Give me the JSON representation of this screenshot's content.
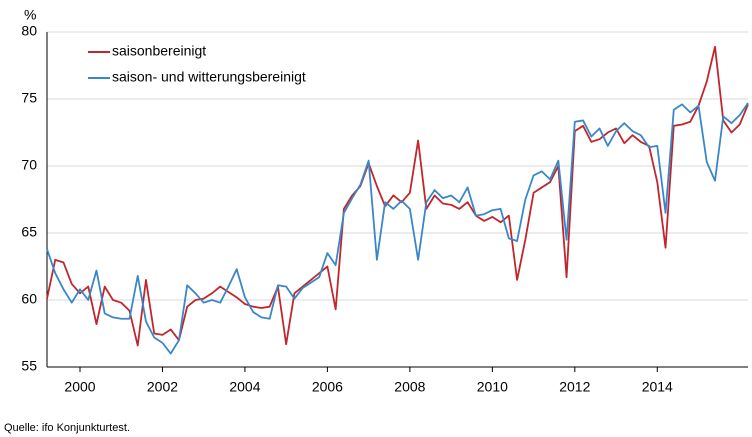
{
  "chart_data": {
    "type": "line",
    "y_unit": "%",
    "source": "Quelle: ifo Konjunkturtest.",
    "x": [
      1999.2,
      1999.4,
      1999.6,
      1999.8,
      2000.0,
      2000.2,
      2000.4,
      2000.6,
      2000.8,
      2001.0,
      2001.2,
      2001.4,
      2001.6,
      2001.8,
      2002.0,
      2002.2,
      2002.4,
      2002.6,
      2002.8,
      2003.0,
      2003.2,
      2003.4,
      2003.6,
      2003.8,
      2004.0,
      2004.2,
      2004.4,
      2004.6,
      2004.8,
      2005.0,
      2005.2,
      2005.4,
      2005.6,
      2005.8,
      2006.0,
      2006.2,
      2006.4,
      2006.6,
      2006.8,
      2007.0,
      2007.2,
      2007.4,
      2007.6,
      2007.8,
      2008.0,
      2008.2,
      2008.4,
      2008.6,
      2008.8,
      2009.0,
      2009.2,
      2009.4,
      2009.6,
      2009.8,
      2010.0,
      2010.2,
      2010.4,
      2010.6,
      2010.8,
      2011.0,
      2011.2,
      2011.4,
      2011.6,
      2011.8,
      2012.0,
      2012.2,
      2012.4,
      2012.6,
      2012.8,
      2013.0,
      2013.2,
      2013.4,
      2013.6,
      2013.8,
      2014.0,
      2014.2,
      2014.4,
      2014.6,
      2014.8,
      2015.0,
      2015.2,
      2015.4,
      2015.6,
      2015.8,
      2016.0,
      2016.2
    ],
    "series": [
      {
        "name": "saisonbereinigt",
        "color": "#c0272d",
        "values": [
          60.1,
          63,
          62.8,
          61.2,
          60.5,
          61,
          58.2,
          61,
          60,
          59.8,
          59.2,
          56.6,
          61.5,
          57.5,
          57.4,
          57.8,
          57,
          59.5,
          60,
          60.1,
          60.5,
          61,
          60.6,
          60.2,
          59.7,
          59.5,
          59.4,
          59.5,
          61,
          56.7,
          60.5,
          61,
          61.5,
          62,
          62.5,
          59.3,
          66.8,
          67.8,
          68.5,
          70.2,
          68.5,
          67,
          67.8,
          67.3,
          68,
          71.9,
          66.8,
          67.8,
          67.2,
          67.1,
          66.8,
          67.3,
          66.3,
          65.9,
          66.2,
          65.8,
          66.3,
          61.5,
          64.5,
          68,
          68.4,
          68.8,
          70,
          61.7,
          72.6,
          73,
          71.8,
          72,
          72.5,
          72.8,
          71.7,
          72.3,
          71.8,
          71.5,
          68.8,
          63.9,
          73,
          73.1,
          73.3,
          74.5,
          76.3,
          78.9,
          73.4,
          72.5,
          73.1,
          74.6
        ]
      },
      {
        "name": "saison- und witterungsbereinigt",
        "color": "#3a87c8",
        "values": [
          63.8,
          62,
          60.8,
          59.8,
          60.8,
          60,
          62.2,
          59,
          58.7,
          58.6,
          58.6,
          61.8,
          58.4,
          57.2,
          56.8,
          56,
          57,
          61.1,
          60.5,
          59.8,
          60,
          59.8,
          61,
          62.3,
          60.2,
          59.1,
          58.7,
          58.6,
          61.1,
          61,
          60.1,
          60.9,
          61.3,
          61.7,
          63.5,
          62.6,
          66.5,
          67.6,
          68.6,
          70.4,
          63,
          67.3,
          66.8,
          67.4,
          66.8,
          63,
          67.3,
          68.2,
          67.6,
          67.8,
          67.3,
          68.4,
          66.3,
          66.4,
          66.7,
          66.8,
          64.6,
          64.4,
          67.5,
          69.3,
          69.6,
          69,
          70.4,
          64.5,
          73.3,
          73.4,
          72.2,
          72.8,
          71.5,
          72.6,
          73.2,
          72.6,
          72.3,
          71.4,
          71.5,
          66.5,
          74.2,
          74.6,
          74,
          74.5,
          70.3,
          68.9,
          73.7,
          73.2,
          73.8,
          74.7
        ]
      }
    ],
    "xlim": [
      1999.2,
      2016.2
    ],
    "xticks": [
      2000,
      2002,
      2004,
      2006,
      2008,
      2010,
      2012,
      2014
    ],
    "ylim": [
      55,
      80
    ],
    "yticks": [
      55,
      60,
      65,
      70,
      75,
      80
    ],
    "grid": true,
    "legend": "upper left"
  }
}
